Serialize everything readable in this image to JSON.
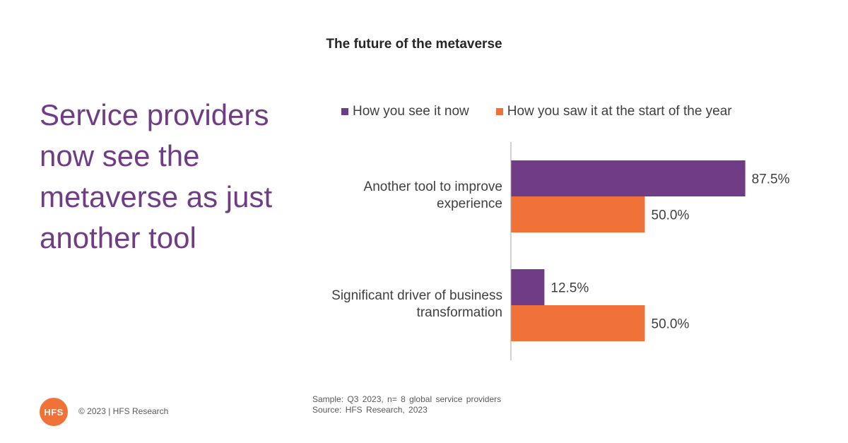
{
  "page": {
    "title": "The future of the metaverse",
    "headline": "Service providers now see the metaverse as just another tool",
    "footnote_sample": "Sample: Q3 2023, n= 8 global service providers",
    "footnote_source": "Source: HFS Research, 2023",
    "logo_text": "HFS",
    "copyright": "© 2023 | HFS Research"
  },
  "colors": {
    "purple": "#6f3c85",
    "orange": "#f07238"
  },
  "chart_data": {
    "type": "bar",
    "orientation": "horizontal",
    "title": "The future of the metaverse",
    "categories": [
      [
        "Another tool to improve",
        "experience"
      ],
      [
        "Significant driver of business",
        "transformation"
      ]
    ],
    "series": [
      {
        "name": "How you see it now",
        "color": "#6f3c85",
        "values": [
          87.5,
          12.5
        ],
        "labels": [
          "87.5%",
          "12.5%"
        ]
      },
      {
        "name": "How you saw it at the start of the year",
        "color": "#f07238",
        "values": [
          50.0,
          50.0
        ],
        "labels": [
          "50.0%",
          "50.0%"
        ]
      }
    ],
    "xlim": [
      0,
      100
    ],
    "grid": false,
    "legend_position": "top"
  }
}
